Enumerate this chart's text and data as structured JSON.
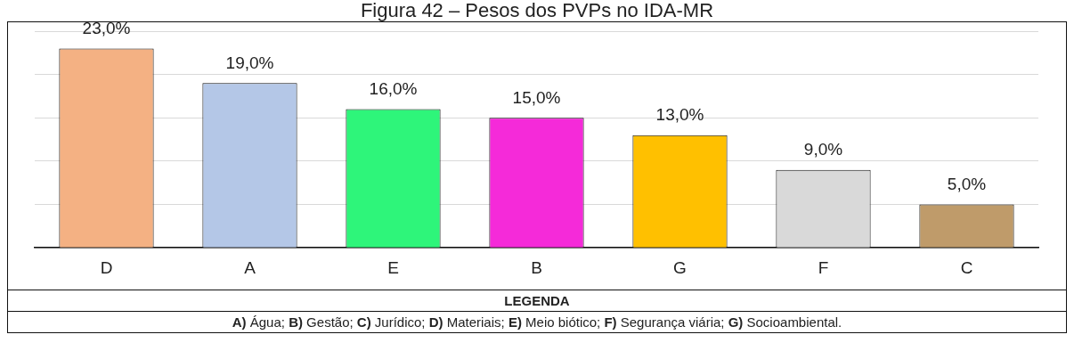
{
  "chart_data": {
    "type": "bar",
    "title": "Figura 42 – Pesos dos PVPs no IDA-MR",
    "categories": [
      "D",
      "A",
      "E",
      "B",
      "G",
      "F",
      "C"
    ],
    "values": [
      23,
      19,
      16,
      15,
      13,
      9,
      5
    ],
    "colors": [
      "#f4b183",
      "#b4c7e7",
      "#2ef57a",
      "#f52ad9",
      "#ffc000",
      "#d9d9d9",
      "#bf9b6a"
    ],
    "value_labels": [
      "23,0%",
      "19,0%",
      "16,0%",
      "15,0%",
      "13,0%",
      "9,0%",
      "5,0%"
    ],
    "ylim": [
      0,
      25
    ],
    "yticks": [
      {
        "value": 0,
        "label": null
      },
      {
        "value": 5,
        "label": null
      },
      {
        "value": 10,
        "label": null
      },
      {
        "value": 15,
        "label": null
      },
      {
        "value": 20,
        "label": null
      },
      {
        "value": 25,
        "label": null
      }
    ],
    "tick_labels": "x",
    "grid": "y",
    "annotations": [
      "LEGENDA",
      "**A)** Água; **B)** Gestão; **C)** Jurídico; **D)** Materiais; **E)** Meio biótico; **F)** Segurança viária; **G)** Socioambiental."
    ]
  }
}
